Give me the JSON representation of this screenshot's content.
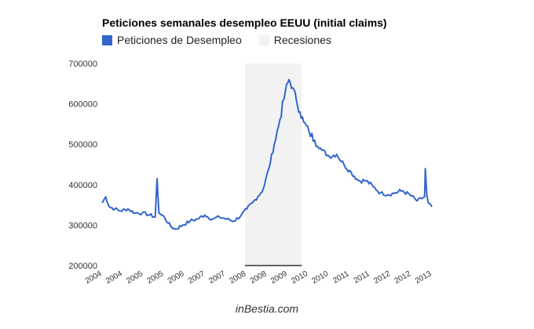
{
  "credit": "inBestia.com",
  "colors": {
    "series": "#3366cc",
    "recession": "#f2f2f2",
    "axis_text": "#333333",
    "baseline": "#333333"
  },
  "chart_data": {
    "type": "line",
    "title": "Peticiones semanales desempleo EEUU (initial claims)",
    "xlabel": "",
    "ylabel": "",
    "legend": {
      "placement": "top-left",
      "entries": [
        {
          "label": "Peticiones de Desempleo",
          "color": "#3366cc"
        },
        {
          "label": "Recesiones",
          "color": "#f2f2f2"
        }
      ]
    },
    "grid": false,
    "ylim": [
      200000,
      700000
    ],
    "yticks": [
      200000,
      300000,
      400000,
      500000,
      600000,
      700000
    ],
    "ytick_labels": [
      "200000",
      "300000",
      "400000",
      "500000",
      "600000",
      "700000"
    ],
    "xlim": [
      2004.0,
      2013.0
    ],
    "xtick_labels": [
      "2004",
      "2004",
      "2005",
      "2005",
      "2006",
      "2007",
      "2007",
      "2008",
      "2008",
      "2009",
      "2010",
      "2010",
      "2011",
      "2011",
      "2012",
      "2012",
      "2013"
    ],
    "recession": {
      "start": 2007.9,
      "end": 2009.45
    },
    "series": [
      {
        "name": "Peticiones de Desempleo",
        "x": [
          2004.0,
          2004.1,
          2004.2,
          2004.35,
          2004.5,
          2004.7,
          2004.9,
          2005.1,
          2005.3,
          2005.45,
          2005.5,
          2005.55,
          2005.62,
          2005.7,
          2005.8,
          2005.9,
          2006.0,
          2006.2,
          2006.4,
          2006.6,
          2006.8,
          2007.0,
          2007.2,
          2007.4,
          2007.6,
          2007.8,
          2007.95,
          2008.1,
          2008.25,
          2008.4,
          2008.55,
          2008.7,
          2008.85,
          2009.0,
          2009.1,
          2009.2,
          2009.3,
          2009.4,
          2009.5,
          2009.65,
          2009.8,
          2010.0,
          2010.2,
          2010.4,
          2010.6,
          2010.8,
          2011.0,
          2011.2,
          2011.4,
          2011.6,
          2011.8,
          2012.0,
          2012.2,
          2012.4,
          2012.6,
          2012.8,
          2012.82,
          2012.86,
          2012.9,
          2013.0
        ],
        "values": [
          355000,
          370000,
          345000,
          340000,
          335000,
          340000,
          330000,
          330000,
          325000,
          320000,
          415000,
          330000,
          325000,
          320000,
          305000,
          295000,
          290000,
          300000,
          310000,
          315000,
          325000,
          315000,
          320000,
          315000,
          310000,
          325000,
          340000,
          355000,
          370000,
          390000,
          440000,
          500000,
          560000,
          630000,
          660000,
          640000,
          610000,
          580000,
          555000,
          530000,
          510000,
          485000,
          470000,
          475000,
          450000,
          430000,
          410000,
          410000,
          395000,
          380000,
          375000,
          380000,
          385000,
          375000,
          360000,
          370000,
          440000,
          375000,
          355000,
          345000
        ]
      }
    ]
  }
}
